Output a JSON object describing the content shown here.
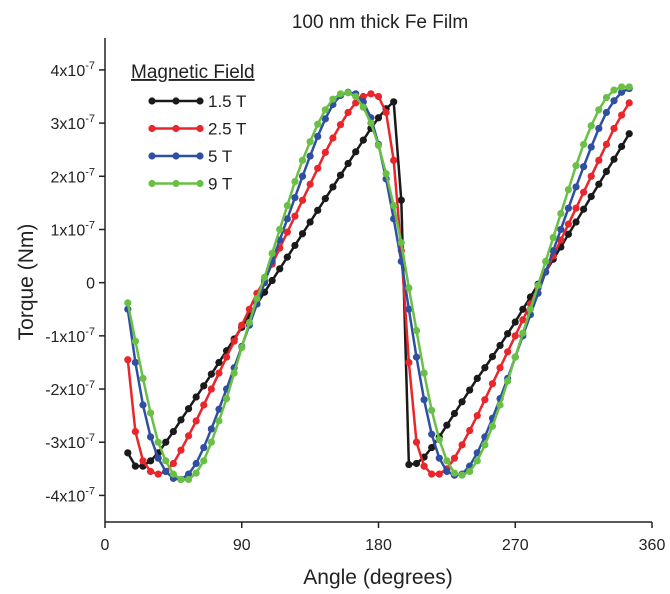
{
  "chart_data": {
    "type": "line",
    "title": "100 nm thick Fe Film",
    "xlabel": "Angle (degrees)",
    "ylabel": "Torque (Nm)",
    "legend_title": "Magnetic Field",
    "legend": "upper left",
    "xlim": [
      0,
      360
    ],
    "xticks": [
      0,
      90,
      180,
      270,
      360
    ],
    "ylim": [
      -4.5e-07,
      4.6e-07
    ],
    "yticks": [
      {
        "value": -4e-07,
        "label": "-4x10",
        "exponent": "-7"
      },
      {
        "value": -3e-07,
        "label": "-3x10",
        "exponent": "-7"
      },
      {
        "value": -2e-07,
        "label": "-2x10",
        "exponent": "-7"
      },
      {
        "value": -1e-07,
        "label": "-1x10",
        "exponent": "-7"
      },
      0,
      {
        "value": 1e-07,
        "label": "1x10",
        "exponent": "-7"
      },
      {
        "value": 2e-07,
        "label": "2x10",
        "exponent": "-7"
      },
      {
        "value": 3e-07,
        "label": "3x10",
        "exponent": "-7"
      },
      {
        "value": 4e-07,
        "label": "4x10",
        "exponent": "-7"
      }
    ],
    "x": [
      15,
      20,
      25,
      30,
      35,
      40,
      45,
      50,
      55,
      60,
      65,
      70,
      75,
      80,
      85,
      90,
      95,
      100,
      105,
      110,
      115,
      120,
      125,
      130,
      135,
      140,
      145,
      150,
      155,
      160,
      165,
      170,
      175,
      180,
      185,
      190,
      195,
      200,
      205,
      210,
      215,
      220,
      225,
      230,
      235,
      240,
      245,
      250,
      255,
      260,
      265,
      270,
      275,
      280,
      285,
      290,
      295,
      300,
      305,
      310,
      315,
      320,
      325,
      330,
      335,
      340,
      345
    ],
    "series": [
      {
        "name": "1.5 T",
        "color": "#1a1a1a",
        "values": [
          -3.2e-07,
          -3.45e-07,
          -3.45e-07,
          -3.35e-07,
          -3.2e-07,
          -3e-07,
          -2.8e-07,
          -2.58e-07,
          -2.37e-07,
          -2.15e-07,
          -1.94e-07,
          -1.72e-07,
          -1.5e-07,
          -1.28e-07,
          -1.06e-07,
          -8.4e-08,
          -6.2e-08,
          -4e-08,
          -1.8e-08,
          4e-09,
          2.6e-08,
          4.8e-08,
          7e-08,
          9.2e-08,
          1.14e-07,
          1.36e-07,
          1.58e-07,
          1.8e-07,
          2.02e-07,
          2.24e-07,
          2.46e-07,
          2.68e-07,
          2.9e-07,
          3.1e-07,
          3.27e-07,
          3.4e-07,
          1.55e-07,
          -3.42e-07,
          -3.4e-07,
          -3.28e-07,
          -3.1e-07,
          -2.9e-07,
          -2.68e-07,
          -2.46e-07,
          -2.24e-07,
          -2.02e-07,
          -1.8e-07,
          -1.6e-07,
          -1.39e-07,
          -1.18e-07,
          -9.6e-08,
          -7.4e-08,
          -5e-08,
          -2.7e-08,
          -3e-09,
          2e-08,
          4.4e-08,
          6.7e-08,
          9.1e-08,
          1.14e-07,
          1.38e-07,
          1.62e-07,
          1.85e-07,
          2.09e-07,
          2.32e-07,
          2.56e-07,
          2.8e-07
        ]
      },
      {
        "name": "2.5 T",
        "color": "#e8262b",
        "values": [
          -1.45e-07,
          -2.8e-07,
          -3.35e-07,
          -3.55e-07,
          -3.6e-07,
          -3.55e-07,
          -3.4e-07,
          -3.15e-07,
          -2.88e-07,
          -2.6e-07,
          -2.3e-07,
          -2e-07,
          -1.7e-07,
          -1.4e-07,
          -1.1e-07,
          -8e-08,
          -5e-08,
          -2e-08,
          5e-09,
          3.5e-08,
          6.5e-08,
          9.5e-08,
          1.25e-07,
          1.55e-07,
          1.85e-07,
          2.15e-07,
          2.45e-07,
          2.72e-07,
          2.97e-07,
          3.2e-07,
          3.38e-07,
          3.5e-07,
          3.55e-07,
          3.5e-07,
          3.2e-07,
          2.3e-07,
          6e-08,
          -1.5e-07,
          -3e-07,
          -3.45e-07,
          -3.6e-07,
          -3.6e-07,
          -3.5e-07,
          -3.3e-07,
          -3.05e-07,
          -2.78e-07,
          -2.5e-07,
          -2.2e-07,
          -1.9e-07,
          -1.6e-07,
          -1.3e-07,
          -1e-07,
          -7e-08,
          -4e-08,
          -1e-08,
          2e-08,
          5e-08,
          8e-08,
          1.1e-07,
          1.4e-07,
          1.7e-07,
          2e-07,
          2.3e-07,
          2.6e-07,
          2.9e-07,
          3.15e-07,
          3.38e-07
        ]
      },
      {
        "name": "5 T",
        "color": "#2f4fa2",
        "values": [
          -5e-08,
          -1.5e-07,
          -2.3e-07,
          -2.9e-07,
          -3.3e-07,
          -3.55e-07,
          -3.68e-07,
          -3.7e-07,
          -3.6e-07,
          -3.4e-07,
          -3.1e-07,
          -2.75e-07,
          -2.38e-07,
          -2e-07,
          -1.6e-07,
          -1.2e-07,
          -8e-08,
          -4e-08,
          0,
          4e-08,
          8e-08,
          1.2e-07,
          1.6e-07,
          2e-07,
          2.38e-07,
          2.75e-07,
          3.08e-07,
          3.35e-07,
          3.52e-07,
          3.58e-07,
          3.55e-07,
          3.4e-07,
          3.1e-07,
          2.6e-07,
          1.95e-07,
          1.2e-07,
          4e-08,
          -5e-08,
          -1.4e-07,
          -2.2e-07,
          -2.85e-07,
          -3.3e-07,
          -3.55e-07,
          -3.62e-07,
          -3.6e-07,
          -3.45e-07,
          -3.2e-07,
          -2.9e-07,
          -2.55e-07,
          -2.18e-07,
          -1.8e-07,
          -1.4e-07,
          -1e-07,
          -6e-08,
          -2e-08,
          2e-08,
          6e-08,
          1e-07,
          1.4e-07,
          1.8e-07,
          2.18e-07,
          2.55e-07,
          2.9e-07,
          3.2e-07,
          3.42e-07,
          3.58e-07,
          3.65e-07
        ]
      },
      {
        "name": "9 T",
        "color": "#6abf45",
        "values": [
          -3.8e-08,
          -1.1e-07,
          -1.8e-07,
          -2.45e-07,
          -3e-07,
          -3.35e-07,
          -3.6e-07,
          -3.7e-07,
          -3.7e-07,
          -3.58e-07,
          -3.35e-07,
          -3e-07,
          -2.6e-07,
          -2.18e-07,
          -1.7e-07,
          -1.22e-07,
          -7.5e-08,
          -3e-08,
          1e-08,
          5.5e-08,
          1e-07,
          1.45e-07,
          1.9e-07,
          2.3e-07,
          2.65e-07,
          2.98e-07,
          3.25e-07,
          3.45e-07,
          3.55e-07,
          3.57e-07,
          3.5e-07,
          3.3e-07,
          3e-07,
          2.58e-07,
          2.05e-07,
          1.45e-07,
          7.5e-08,
          -1e-08,
          -9e-08,
          -1.7e-07,
          -2.4e-07,
          -2.95e-07,
          -3.35e-07,
          -3.58e-07,
          -3.62e-07,
          -3.55e-07,
          -3.35e-07,
          -3.05e-07,
          -2.7e-07,
          -2.3e-07,
          -1.85e-07,
          -1.4e-07,
          -9.5e-08,
          -5e-08,
          -5e-09,
          4e-08,
          8.5e-08,
          1.3e-07,
          1.75e-07,
          2.2e-07,
          2.6e-07,
          2.95e-07,
          3.25e-07,
          3.48e-07,
          3.62e-07,
          3.68e-07,
          3.68e-07
        ]
      }
    ]
  }
}
